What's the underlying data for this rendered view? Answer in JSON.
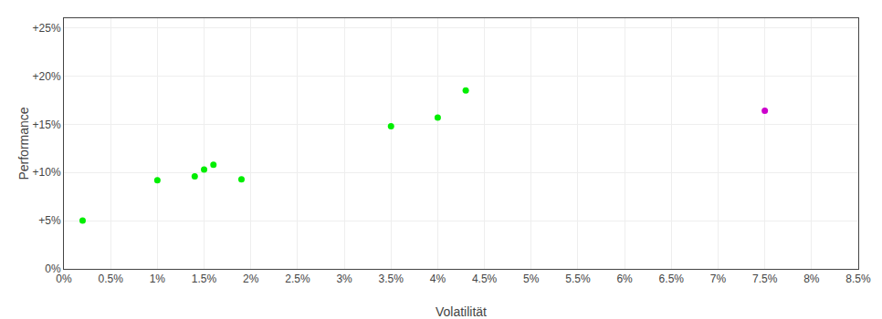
{
  "chart_data": {
    "type": "scatter",
    "xlabel": "Volatilität",
    "ylabel": "Performance",
    "series": [
      {
        "x": [
          0.002,
          0.01,
          0.014,
          0.015,
          0.016,
          0.019,
          0.035,
          0.04,
          0.043
        ],
        "values": [
          0.05,
          0.092,
          0.096,
          0.103,
          0.108,
          0.093,
          0.148,
          0.157,
          0.185
        ],
        "color": "#00ee00"
      },
      {
        "x": [
          0.075
        ],
        "values": [
          0.164
        ],
        "color": "#cc00cc"
      }
    ],
    "xlim": [
      0.0,
      0.085
    ],
    "ylim": [
      0.0,
      0.26
    ],
    "xticks": [
      {
        "value": 0.0,
        "label": "0%"
      },
      {
        "value": 0.005,
        "label": "0.5%"
      },
      {
        "value": 0.01,
        "label": "1%"
      },
      {
        "value": 0.015,
        "label": "1.5%"
      },
      {
        "value": 0.02,
        "label": "2%"
      },
      {
        "value": 0.025,
        "label": "2.5%"
      },
      {
        "value": 0.03,
        "label": "3%"
      },
      {
        "value": 0.035,
        "label": "3.5%"
      },
      {
        "value": 0.04,
        "label": "4%"
      },
      {
        "value": 0.045,
        "label": "4.5%"
      },
      {
        "value": 0.05,
        "label": "5%"
      },
      {
        "value": 0.055,
        "label": "5.5%"
      },
      {
        "value": 0.06,
        "label": "6%"
      },
      {
        "value": 0.065,
        "label": "6.5%"
      },
      {
        "value": 0.07,
        "label": "7%"
      },
      {
        "value": 0.075,
        "label": "7.5%"
      },
      {
        "value": 0.08,
        "label": "8%"
      },
      {
        "value": 0.085,
        "label": "8.5%"
      }
    ],
    "yticks": [
      {
        "value": 0.0,
        "label": "0%"
      },
      {
        "value": 0.05,
        "label": "+5%"
      },
      {
        "value": 0.1,
        "label": "+10%"
      },
      {
        "value": 0.15,
        "label": "+15%"
      },
      {
        "value": 0.2,
        "label": "+20%"
      },
      {
        "value": 0.25,
        "label": "+25%"
      }
    ],
    "grid": true
  }
}
